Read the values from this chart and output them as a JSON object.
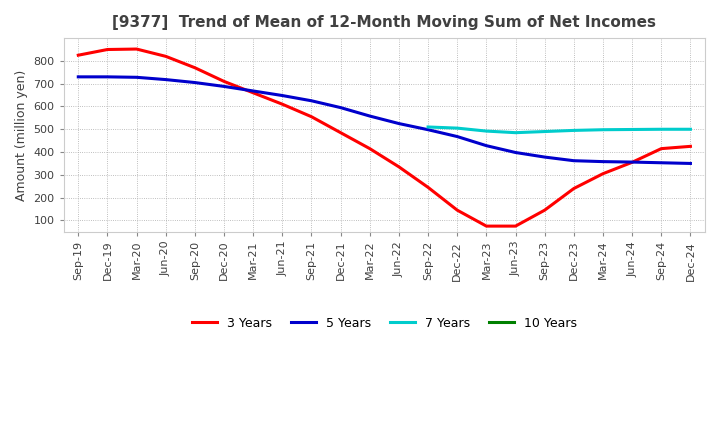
{
  "title": "[9377]  Trend of Mean of 12-Month Moving Sum of Net Incomes",
  "ylabel": "Amount (million yen)",
  "title_color": "#404040",
  "background_color": "#ffffff",
  "grid_color": "#aaaaaa",
  "ylim": [
    50,
    900
  ],
  "yticks": [
    100,
    200,
    300,
    400,
    500,
    600,
    700,
    800
  ],
  "x_labels": [
    "Sep-19",
    "Dec-19",
    "Mar-20",
    "Jun-20",
    "Sep-20",
    "Dec-20",
    "Mar-21",
    "Jun-21",
    "Sep-21",
    "Dec-21",
    "Mar-22",
    "Jun-22",
    "Sep-22",
    "Dec-22",
    "Mar-23",
    "Jun-23",
    "Sep-23",
    "Dec-23",
    "Mar-24",
    "Jun-24",
    "Sep-24",
    "Dec-24"
  ],
  "series": {
    "3 Years": {
      "color": "#ff0000",
      "data": [
        825,
        850,
        852,
        820,
        770,
        710,
        660,
        610,
        555,
        485,
        415,
        335,
        245,
        145,
        75,
        75,
        145,
        240,
        305,
        355,
        415,
        425
      ]
    },
    "5 Years": {
      "color": "#0000cc",
      "data": [
        730,
        730,
        728,
        718,
        705,
        688,
        668,
        648,
        625,
        595,
        558,
        525,
        498,
        468,
        428,
        398,
        378,
        362,
        358,
        356,
        353,
        350
      ]
    },
    "7 Years": {
      "color": "#00cccc",
      "data": [
        null,
        null,
        null,
        null,
        null,
        null,
        null,
        null,
        null,
        null,
        null,
        null,
        510,
        505,
        492,
        485,
        490,
        495,
        498,
        499,
        500,
        500
      ]
    },
    "10 Years": {
      "color": "#008000",
      "data": [
        null,
        null,
        null,
        null,
        null,
        null,
        null,
        null,
        null,
        null,
        null,
        null,
        null,
        null,
        null,
        null,
        null,
        null,
        null,
        null,
        null,
        null
      ]
    }
  }
}
